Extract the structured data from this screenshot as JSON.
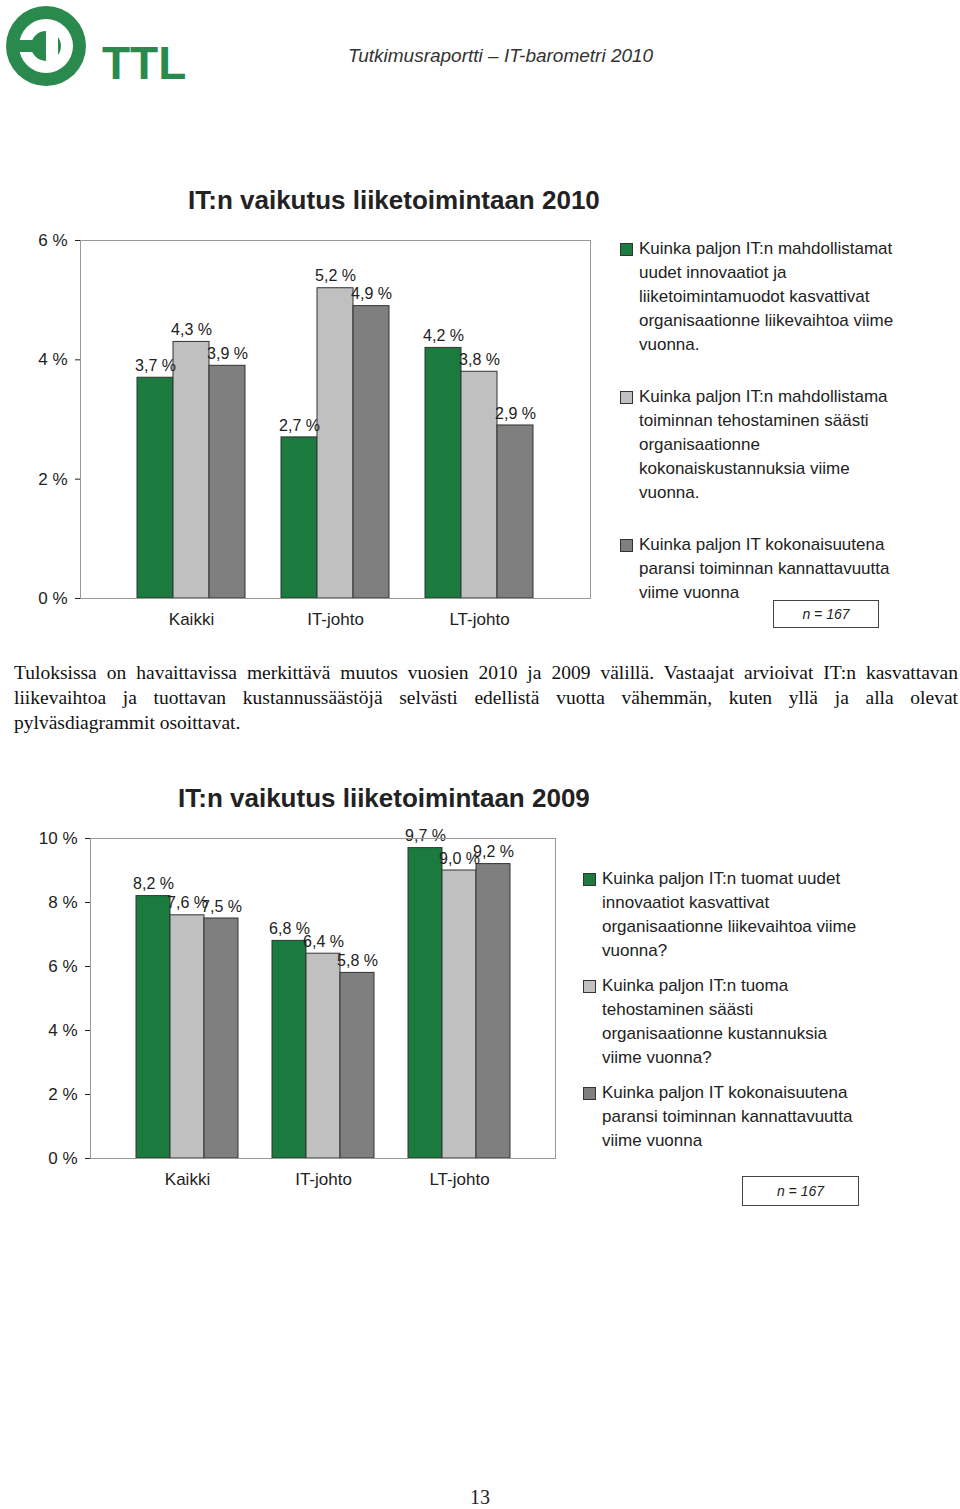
{
  "document": {
    "logo_text": "TTL",
    "header": "Tutkimusraportti – IT-barometri 2010",
    "paragraph": "Tuloksissa on havaittavissa merkittävä muutos vuosien 2010 ja 2009 välillä. Vastaajat arvioivat IT:n kasvattavan liikevaihtoa ja tuottavan kustannussäästöjä selvästi edellistä vuotta vähemmän, kuten yllä ja alla olevat pylväsdiagrammit osoittavat.",
    "page_number": "13"
  },
  "chart_data": [
    {
      "type": "bar",
      "title": "IT:n vaikutus liiketoimintaan 2010",
      "categories": [
        "Kaikki",
        "IT-johto",
        "LT-johto"
      ],
      "series": [
        {
          "name": "Kuinka paljon IT:n mahdollistamat uudet innovaatiot ja liiketoimintamuodot kasvattivat organisaationne liikevaihtoa viime vuonna.",
          "color": "#1b7a3e",
          "values": [
            3.7,
            2.7,
            4.2
          ],
          "value_labels": [
            "3,7 %",
            "2,7 %",
            "4,2 %"
          ]
        },
        {
          "name": "Kuinka paljon IT:n mahdollistama toiminnan tehostaminen säästi organisaationne kokonaiskustannuksia viime vuonna.",
          "color": "#c0c0c0",
          "values": [
            4.3,
            5.2,
            3.8
          ],
          "value_labels": [
            "4,3 %",
            "5,2 %",
            "3,8 %"
          ]
        },
        {
          "name": "Kuinka paljon IT kokonaisuutena paransi toiminnan kannattavuutta viime vuonna",
          "color": "#7f7f7f",
          "values": [
            3.9,
            4.9,
            2.9
          ],
          "value_labels": [
            "3,9 %",
            "4,9 %",
            "2,9 %"
          ]
        }
      ],
      "ylim": [
        0,
        6
      ],
      "yticks": [
        {
          "value": 0,
          "label": "0 %"
        },
        {
          "value": 2,
          "label": "2 %"
        },
        {
          "value": 4,
          "label": "4 %"
        },
        {
          "value": 6,
          "label": "6 %"
        }
      ],
      "grid": false,
      "legend": "right",
      "data_labels": true,
      "annotations": [
        "n = 167"
      ]
    },
    {
      "type": "bar",
      "title": "IT:n vaikutus liiketoimintaan 2009",
      "categories": [
        "Kaikki",
        "IT-johto",
        "LT-johto"
      ],
      "series": [
        {
          "name": "Kuinka paljon IT:n tuomat uudet innovaatiot kasvattivat organisaationne liikevaihtoa viime vuonna?",
          "color": "#1b7a3e",
          "values": [
            8.2,
            6.8,
            9.7
          ],
          "value_labels": [
            "8,2 %",
            "6,8 %",
            "9,7 %"
          ]
        },
        {
          "name": "Kuinka paljon IT:n tuoma tehostaminen säästi organisaationne kustannuksia viime vuonna?",
          "color": "#c0c0c0",
          "values": [
            7.6,
            6.4,
            9.0
          ],
          "value_labels": [
            "7,6 %",
            "6,4 %",
            "9,0 %"
          ]
        },
        {
          "name": "Kuinka paljon IT kokonaisuutena paransi toiminnan kannattavuutta viime vuonna",
          "color": "#7f7f7f",
          "values": [
            7.5,
            5.8,
            9.2
          ],
          "value_labels": [
            "7,5 %",
            "5,8 %",
            "9,2 %"
          ]
        }
      ],
      "ylim": [
        0,
        10
      ],
      "yticks": [
        {
          "value": 0,
          "label": "0 %"
        },
        {
          "value": 2,
          "label": "2 %"
        },
        {
          "value": 4,
          "label": "4 %"
        },
        {
          "value": 6,
          "label": "6 %"
        },
        {
          "value": 8,
          "label": "8 %"
        },
        {
          "value": 10,
          "label": "10 %"
        }
      ],
      "grid": false,
      "legend": "right",
      "data_labels": true,
      "annotations": [
        "n = 167"
      ]
    }
  ]
}
